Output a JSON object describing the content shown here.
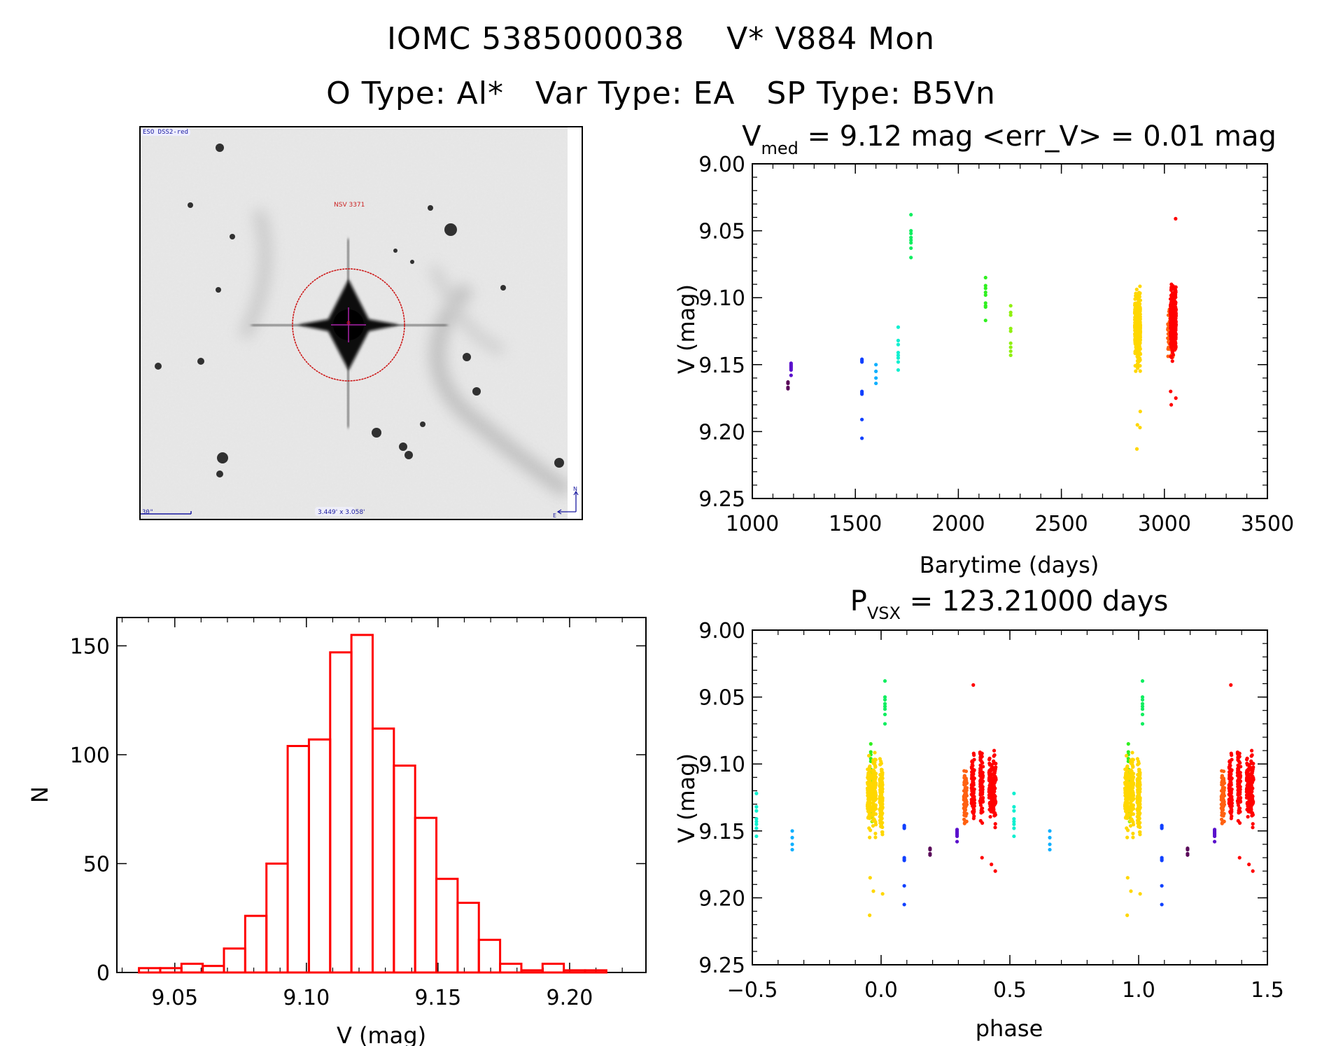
{
  "header": {
    "line1": "IOMC 5385000038    V* V884 Mon",
    "line2": "O Type: Al*   Var Type: EA   SP Type: B5Vn"
  },
  "image_panel": {
    "survey_label": "ESO DSS2-red",
    "object_label": "NSV 3371",
    "scale_label": "30\"",
    "fov_label": "3.449' x 3.058'",
    "compass_north": "N",
    "compass_east": "E",
    "colors": {
      "survey": "#1a1aa0",
      "object": "#cc2222",
      "circle": "#cc1111",
      "crosshair": "#aa22aa"
    }
  },
  "chart_data": [
    {
      "id": "light_curve",
      "type": "scatter",
      "title_main": "V",
      "title_sub": "med",
      "title_rest": " = 9.12 mag <err_V> = 0.01 mag",
      "xlabel": "Barytime (days)",
      "ylabel": "V (mag)",
      "xlim": [
        1000,
        3500
      ],
      "ylim": [
        9.25,
        9.0
      ],
      "xticks": [
        1000,
        1500,
        2000,
        2500,
        3000,
        3500
      ],
      "xtick_labels": [
        "1000",
        "1500",
        "2000",
        "2500",
        "3000",
        "3500"
      ],
      "yticks": [
        9.0,
        9.05,
        9.1,
        9.15,
        9.2,
        9.25
      ],
      "ytick_labels": [
        "9.00",
        "9.05",
        "9.10",
        "9.15",
        "9.20",
        "9.25"
      ],
      "grid": false,
      "series": [
        {
          "name": "s1",
          "color": "#5a0a5a",
          "x": 1173,
          "values": [
            9.163,
            9.164,
            9.167,
            9.168
          ]
        },
        {
          "name": "s2",
          "color": "#5a10cc",
          "x": 1188,
          "values": [
            9.149,
            9.15,
            9.151,
            9.152,
            9.153,
            9.154,
            9.158
          ]
        },
        {
          "name": "s3",
          "color": "#1040ff",
          "x": 1532,
          "values": [
            9.146,
            9.147,
            9.148,
            9.17,
            9.171,
            9.172,
            9.191,
            9.205
          ]
        },
        {
          "name": "s4",
          "color": "#10b0ff",
          "x": 1600,
          "values": [
            9.15,
            9.155,
            9.16,
            9.164
          ]
        },
        {
          "name": "s5",
          "color": "#10f0d0",
          "x": 1708,
          "values": [
            9.122,
            9.132,
            9.135,
            9.141,
            9.143,
            9.145,
            9.148,
            9.154
          ]
        },
        {
          "name": "s6",
          "color": "#10ee60",
          "x": 1770,
          "values": [
            9.038,
            9.05,
            9.052,
            9.055,
            9.057,
            9.059,
            9.063,
            9.07
          ]
        },
        {
          "name": "s7",
          "color": "#30f020",
          "x": 2132,
          "values": [
            9.085,
            9.091,
            9.093,
            9.096,
            9.098,
            9.104,
            9.106,
            9.107,
            9.117
          ]
        },
        {
          "name": "s8",
          "color": "#90f010",
          "x": 2254,
          "values": [
            9.106,
            9.111,
            9.113,
            9.123,
            9.125,
            9.134,
            9.137,
            9.14,
            9.143
          ]
        },
        {
          "name": "s9",
          "color": "#ffd700",
          "x": 2870,
          "dense": {
            "count": 420,
            "min": 9.074,
            "max": 9.175,
            "median": 9.122,
            "outliers": [
              9.185,
              9.195,
              9.197,
              9.213
            ]
          }
        },
        {
          "name": "s10",
          "color": "#ff6010",
          "x": 3030,
          "dense": {
            "count": 80,
            "min": 9.09,
            "max": 9.17,
            "median": 9.125,
            "outliers": []
          }
        },
        {
          "name": "s11",
          "color": "#ff0000",
          "x": 3043,
          "dense": {
            "count": 360,
            "min": 9.068,
            "max": 9.165,
            "median": 9.118,
            "outliers": [
              9.041,
              9.17,
              9.175,
              9.18
            ]
          }
        }
      ]
    },
    {
      "id": "histogram",
      "type": "bar",
      "title": "",
      "xlabel": "V (mag)",
      "ylabel": "N",
      "xlim": [
        9.028,
        9.229
      ],
      "ylim": [
        0,
        163
      ],
      "xticks": [
        9.05,
        9.1,
        9.15,
        9.2
      ],
      "xtick_labels": [
        "9.05",
        "9.10",
        "9.15",
        "9.20"
      ],
      "yticks": [
        0,
        50,
        100,
        150
      ],
      "ytick_labels": [
        "0",
        "50",
        "100",
        "150"
      ],
      "bin_start": 9.0364,
      "bin_width": 0.00807,
      "values": [
        2,
        2,
        4,
        3,
        11,
        26,
        50,
        104,
        107,
        147,
        155,
        112,
        95,
        71,
        43,
        32,
        15,
        4,
        1,
        4,
        1,
        1
      ],
      "color": "#ff0000",
      "grid": false
    },
    {
      "id": "phased_curve",
      "type": "scatter",
      "title_main": "P",
      "title_sub": "VSX",
      "title_rest": " = 123.21000 days",
      "xlabel": "phase",
      "ylabel": "V (mag)",
      "xlim": [
        -0.5,
        1.5
      ],
      "ylim": [
        9.25,
        9.0
      ],
      "xticks": [
        -0.5,
        0.0,
        0.5,
        1.0,
        1.5
      ],
      "xtick_labels": [
        "−0.5",
        "0.0",
        "0.5",
        "1.0",
        "1.5"
      ],
      "yticks": [
        9.0,
        9.05,
        9.1,
        9.15,
        9.2,
        9.25
      ],
      "ytick_labels": [
        "9.00",
        "9.05",
        "9.10",
        "9.15",
        "9.20",
        "9.25"
      ],
      "period_days": 123.21,
      "note": "Each series plotted at phase and phase+1 (and phase-1 when within range)",
      "series_phases": {
        "s1": 0.19,
        "s2": 0.295,
        "s3": 0.09,
        "s4": 0.655,
        "s5": 0.516,
        "s6": 0.015,
        "s7": -0.04,
        "s8": -0.035,
        "s9": [
          -0.047,
          -0.026,
          0.0
        ],
        "s10": 0.327,
        "s11": [
          0.357,
          0.39,
          0.425,
          0.44
        ]
      },
      "grid": false
    }
  ]
}
